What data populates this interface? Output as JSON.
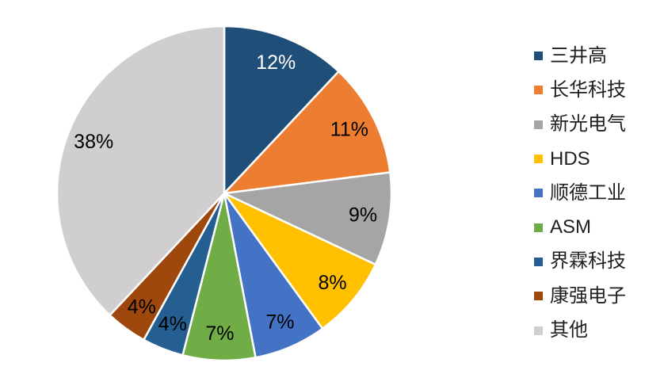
{
  "chart_data": {
    "type": "pie",
    "labels": [
      "三井高",
      "长华科技",
      "新光电气",
      "HDS",
      "顺德工业",
      "ASM",
      "界霖科技",
      "康强电子",
      "其他"
    ],
    "values": [
      12,
      11,
      9,
      8,
      7,
      7,
      4,
      4,
      38
    ],
    "data_labels": [
      "12%",
      "11%",
      "9%",
      "8%",
      "7%",
      "7%",
      "4%",
      "4%",
      "38%"
    ],
    "unit": "%",
    "colors": [
      "#1F4E79",
      "#ED7D31",
      "#A5A5A5",
      "#FFC000",
      "#4472C4",
      "#70AD47",
      "#255E91",
      "#9E480E",
      "#D0CECE"
    ],
    "data_label_colors": [
      "#FFFFFF",
      "#000000",
      "#000000",
      "#000000",
      "#000000",
      "#000000",
      "#000000",
      "#000000",
      "#000000"
    ],
    "slice_border_color": "#FFFFFF",
    "legend_position": "right",
    "start_angle_deg": 0,
    "direction": "clockwise",
    "title": "",
    "xlabel": "",
    "ylabel": ""
  }
}
